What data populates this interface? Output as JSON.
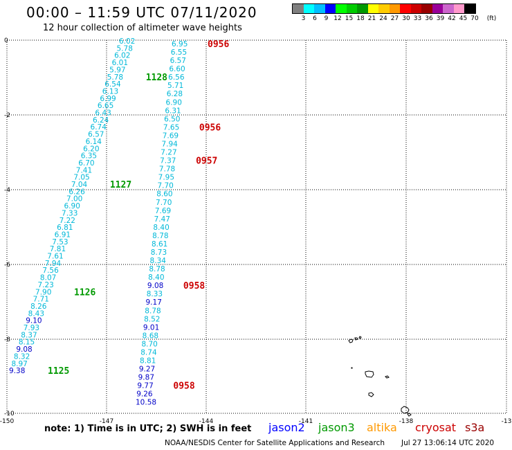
{
  "title": "00:00 – 11:59 UTC 07/11/2020",
  "subtitle": "12 hour collection of altimeter wave heights",
  "legend": {
    "colors": [
      "#7f7f7f",
      "#00ffff",
      "#00bfff",
      "#0000ff",
      "#00ff00",
      "#00cc00",
      "#009900",
      "#ffff00",
      "#ffcc00",
      "#ff9900",
      "#ff0000",
      "#cc0000",
      "#990000",
      "#990099",
      "#cc66cc",
      "#ff99cc",
      "#000000"
    ],
    "labels": [
      "3",
      "6",
      "9",
      "12",
      "15",
      "18",
      "21",
      "24",
      "27",
      "30",
      "33",
      "36",
      "39",
      "42",
      "45",
      "70"
    ],
    "unit": "(ft)"
  },
  "axes": {
    "x_ticks": [
      "-150",
      "-147",
      "-144",
      "-141",
      "-138",
      "-13"
    ],
    "y_ticks": [
      "0",
      "-2",
      "-4",
      "-6",
      "-8",
      "-10"
    ]
  },
  "note": "note: 1) Time is in UTC; 2) SWH is in feet",
  "satellites": [
    {
      "name": "jason2",
      "color": "#0000ff"
    },
    {
      "name": "jason3",
      "color": "#009900"
    },
    {
      "name": "altika",
      "color": "#ff9900"
    },
    {
      "name": "cryosat",
      "color": "#cc0000"
    },
    {
      "name": "s3a",
      "color": "#990000"
    }
  ],
  "footer": "NOAA/NESDIS Center for Satellite Applications and Research",
  "footer_date": "Jul 27 13:06:14 UTC 2020",
  "tracks": [
    {
      "satellite": "jason3",
      "values": [
        "6.02",
        "5.78",
        "6.02",
        "6.01",
        "5.97",
        "5.78",
        "6.54",
        "6.13",
        "6.99",
        "6.65",
        "6.43",
        "6.24",
        "6.74",
        "6.57",
        "6.14",
        "6.20",
        "6.35",
        "6.70",
        "7.41",
        "7.05",
        "7.04",
        "6.26",
        "7.00",
        "6.90",
        "7.33",
        "7.22",
        "6.81",
        "6.91",
        "7.53",
        "7.81",
        "7.61",
        "7.94",
        "7.56",
        "8.07",
        "7.23",
        "7.90",
        "7.71",
        "8.26",
        "8.43",
        "9.10",
        "7.93",
        "8.37",
        "8.15",
        "9.08",
        "8.32",
        "8.97",
        "9.38"
      ],
      "times": [
        {
          "label": "1128",
          "index": 5
        },
        {
          "label": "1127",
          "index": 20
        },
        {
          "label": "1126",
          "index": 35
        },
        {
          "label": "1125",
          "index": 46
        }
      ]
    },
    {
      "satellite": "cryosat",
      "values": [
        "6.95",
        "6.55",
        "6.57",
        "6.60",
        "6.56",
        "5.71",
        "6.28",
        "6.90",
        "6.31",
        "6.50",
        "7.65",
        "7.69",
        "7.94",
        "7.27",
        "7.37",
        "7.78",
        "7.95",
        "7.70",
        "8.60",
        "7.70",
        "7.69",
        "7.47",
        "8.40",
        "8.78",
        "8.61",
        "8.73",
        "8.34",
        "8.78",
        "8.40",
        "9.08",
        "8.33",
        "9.17",
        "8.78",
        "8.52",
        "9.01",
        "8.68",
        "8.70",
        "8.74",
        "8.81",
        "9.27",
        "9.87",
        "9.77",
        "9.26",
        "10.58"
      ],
      "times": [
        {
          "label": "0956",
          "index": 0
        },
        {
          "label": "0956",
          "index": 10
        },
        {
          "label": "0957",
          "index": 14
        },
        {
          "label": "0958",
          "index": 29
        },
        {
          "label": "0958",
          "index": 41
        }
      ]
    }
  ]
}
